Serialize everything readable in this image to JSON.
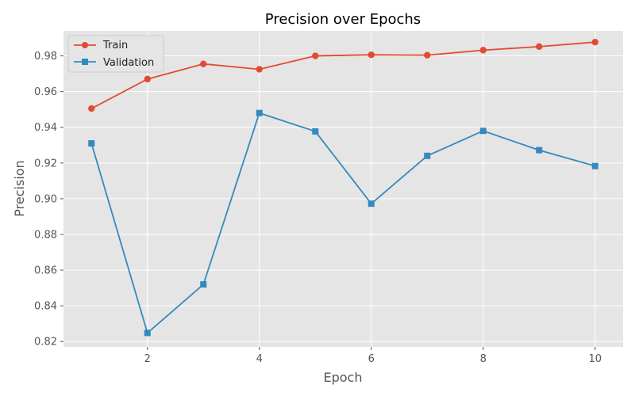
{
  "chart_data": {
    "type": "line",
    "title": "Precision over Epochs",
    "xlabel": "Epoch",
    "ylabel": "Precision",
    "xlim": [
      0.5,
      10.5
    ],
    "ylim": [
      0.817,
      0.994
    ],
    "xticks": [
      2,
      4,
      6,
      8,
      10
    ],
    "yticks": [
      0.82,
      0.84,
      0.86,
      0.88,
      0.9,
      0.92,
      0.94,
      0.96,
      0.98
    ],
    "ytick_labels": [
      "0.82",
      "0.84",
      "0.86",
      "0.88",
      "0.90",
      "0.92",
      "0.94",
      "0.96",
      "0.98"
    ],
    "grid": true,
    "legend_position": "top-left",
    "x": [
      1,
      2,
      3,
      4,
      5,
      6,
      7,
      8,
      9,
      10
    ],
    "series": [
      {
        "name": "Train",
        "color": "#E24A33",
        "marker": "circle",
        "values": [
          0.9505,
          0.967,
          0.9755,
          0.9725,
          0.98,
          0.9806,
          0.9804,
          0.9832,
          0.9852,
          0.9877
        ]
      },
      {
        "name": "Validation",
        "color": "#348ABD",
        "marker": "square",
        "values": [
          0.931,
          0.8248,
          0.852,
          0.948,
          0.9377,
          0.8972,
          0.924,
          0.938,
          0.9272,
          0.9183
        ]
      }
    ]
  }
}
